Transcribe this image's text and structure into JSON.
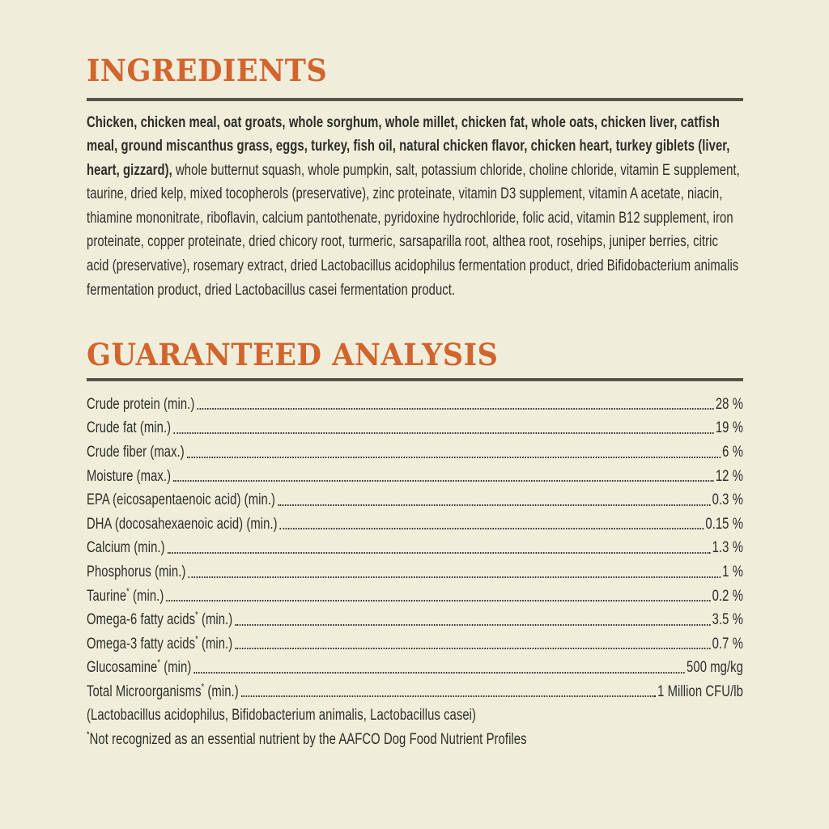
{
  "theme": {
    "background": "#f0eedb",
    "accent_orange": "#d2642d",
    "text_color": "#2e2d26",
    "rule_color": "#56554b"
  },
  "ingredients": {
    "title": "INGREDIENTS",
    "bold_text": "Chicken, chicken meal, oat groats, whole sorghum, whole millet, chicken fat, whole oats, chicken liver, catfish meal, ground miscanthus grass, eggs, turkey, fish oil, natural chicken flavor, chicken heart, turkey giblets (liver, heart, gizzard), ",
    "regular_text": "whole butternut squash, whole pumpkin, salt, potassium chloride, choline chloride, vitamin E supplement, taurine, dried kelp, mixed tocopherols (preservative), zinc proteinate, vitamin D3 supplement, vitamin A acetate, niacin, thiamine mononitrate, riboflavin, calcium pantothenate, pyridoxine hydrochloride, folic acid, vitamin B12 supplement, iron proteinate, copper proteinate, dried chicory root, turmeric, sarsaparilla root, althea root, rosehips, juniper berries, citric acid (preservative), rosemary extract, dried Lactobacillus acidophilus fermentation product, dried Bifidobacterium animalis fermentation product, dried Lactobacillus casei fermentation product."
  },
  "analysis": {
    "title": "GUARANTEED ANALYSIS",
    "rows": [
      {
        "label": "Crude protein",
        "mark": "",
        "qualifier": " (min.)",
        "value": "28 %"
      },
      {
        "label": "Crude fat",
        "mark": "",
        "qualifier": " (min.)",
        "value": "19 %"
      },
      {
        "label": "Crude fiber",
        "mark": "",
        "qualifier": " (max.)",
        "value": "6 %"
      },
      {
        "label": "Moisture",
        "mark": "",
        "qualifier": " (max.)",
        "value": "12 %"
      },
      {
        "label": "EPA (eicosapentaenoic acid)",
        "mark": "",
        "qualifier": " (min.)",
        "value": "0.3 %"
      },
      {
        "label": "DHA (docosahexaenoic acid)",
        "mark": "",
        "qualifier": " (min.)",
        "value": "0.15 %"
      },
      {
        "label": "Calcium",
        "mark": "",
        "qualifier": " (min.)",
        "value": "1.3 %"
      },
      {
        "label": "Phosphorus",
        "mark": "",
        "qualifier": " (min.)",
        "value": "1 %"
      },
      {
        "label": "Taurine",
        "mark": "*",
        "qualifier": " (min.)",
        "value": "0.2 %"
      },
      {
        "label": "Omega-6 fatty acids",
        "mark": "*",
        "qualifier": " (min.)",
        "value": "3.5 %"
      },
      {
        "label": "Omega-3 fatty acids",
        "mark": "*",
        "qualifier": " (min.)",
        "value": "0.7 %"
      },
      {
        "label": "Glucosamine",
        "mark": "*",
        "qualifier": " (min)",
        "value": "500 mg/kg"
      },
      {
        "label": "Total Microorganisms",
        "mark": "*",
        "qualifier": " (min.)",
        "value": "1 Million CFU/lb"
      }
    ],
    "species_note": "(Lactobacillus acidophilus, Bifidobacterium animalis, Lactobacillus casei)",
    "footnote_mark": "*",
    "footnote_text": "Not recognized as an essential nutrient by the AAFCO Dog Food Nutrient Profiles"
  }
}
